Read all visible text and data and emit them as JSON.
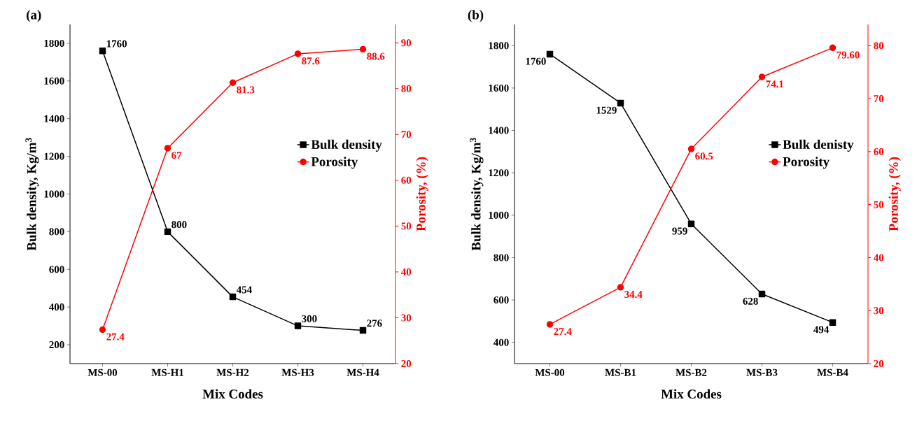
{
  "chart_data": [
    {
      "type": "line",
      "title": "(a)",
      "xlabel": "Mix Codes",
      "ylabel": "Bulk density, Kg/m$^{3}$",
      "y2label": "Porosity, (%)",
      "categories": [
        "MS-00",
        "MS-H1",
        "MS-H2",
        "MS-H3",
        "MS-H4"
      ],
      "ylim": [
        100,
        1900
      ],
      "yticks": [
        200,
        400,
        600,
        800,
        1000,
        1200,
        1400,
        1600,
        1800
      ],
      "y2lim": [
        20,
        94
      ],
      "y2ticks": [
        20,
        30,
        40,
        50,
        60,
        70,
        80,
        90
      ],
      "legend": "right",
      "grid": false,
      "series": [
        {
          "name": "Bulk density",
          "color": "#000000",
          "marker": "square",
          "values": [
            1760,
            800,
            454,
            300,
            276
          ],
          "value_labels": [
            "1760",
            "800",
            "454",
            "300",
            "276"
          ]
        },
        {
          "name": "Porosity",
          "color": "#ff0000",
          "marker": "circle",
          "axis": "y2",
          "values": [
            27.4,
            67,
            81.3,
            87.6,
            88.6
          ],
          "value_labels": [
            "27.4",
            "67",
            "81.3",
            "87.6",
            "88.6"
          ]
        }
      ]
    },
    {
      "type": "line",
      "title": "(b)",
      "xlabel": "Mix Codes",
      "ylabel": "Bulk density, Kg/m$^{3}$",
      "y2label": "Porosity, (%)",
      "categories": [
        "MS-00",
        "MS-B1",
        "MS-B2",
        "MS-B3",
        "MS-B4"
      ],
      "ylim": [
        300,
        1900
      ],
      "yticks": [
        400,
        600,
        800,
        1000,
        1200,
        1400,
        1600,
        1800
      ],
      "y2lim": [
        20,
        84
      ],
      "y2ticks": [
        20,
        30,
        40,
        50,
        60,
        70,
        80
      ],
      "legend": "right",
      "grid": false,
      "series": [
        {
          "name": "Bulk denisty",
          "color": "#000000",
          "marker": "square",
          "values": [
            1760,
            1529,
            959,
            628,
            494
          ],
          "value_labels": [
            "1760",
            "1529",
            "959",
            "628",
            "494"
          ]
        },
        {
          "name": "Porosity",
          "color": "#ff0000",
          "marker": "circle",
          "axis": "y2",
          "values": [
            27.4,
            34.4,
            60.5,
            74.1,
            79.6
          ],
          "value_labels": [
            "27.4",
            "34.4",
            "60.5",
            "74.1",
            "79.60"
          ]
        }
      ]
    }
  ]
}
